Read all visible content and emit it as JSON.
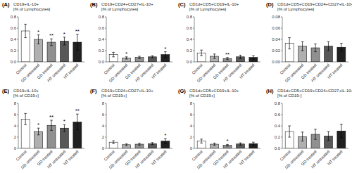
{
  "chart_data": [
    {
      "type": "bar",
      "label": "(A)",
      "title": "CD19+IL-10+[% of Lymphocytes]",
      "categories": [
        "Control",
        "GD untreated",
        "GD treated",
        "HT untreated",
        "HT treated"
      ],
      "values": [
        0.55,
        0.4,
        0.35,
        0.37,
        0.35
      ],
      "errors": [
        0.12,
        0.08,
        0.06,
        0.07,
        0.14
      ],
      "colors": [
        "#ffffff",
        "#b0b0b0",
        "#909090",
        "#585858",
        "#202020"
      ],
      "ylim": [
        0,
        0.8
      ],
      "yticks": [
        {
          "value": 0.0,
          "label": "0.0"
        },
        0.2,
        0.4,
        0.6,
        0.8
      ],
      "annotations": [
        {
          "x": "GD untreated",
          "text": "*"
        },
        {
          "x": "GD treated",
          "text": "**"
        },
        {
          "x": "HT untreated",
          "text": "*"
        },
        {
          "x": "HT treated",
          "text": "**"
        }
      ]
    },
    {
      "type": "bar",
      "label": "(B)",
      "title": "CD19+CD24+CD27+IL-10+[% of Lymphocytes]",
      "categories": [
        "Control",
        "GD untreated",
        "GD treated",
        "HT untreated",
        "HT treated"
      ],
      "values": [
        0.13,
        0.07,
        0.08,
        0.09,
        0.13
      ],
      "errors": [
        0.04,
        0.02,
        0.02,
        0.02,
        0.05
      ],
      "colors": [
        "#ffffff",
        "#b0b0b0",
        "#909090",
        "#585858",
        "#202020"
      ],
      "ylim": [
        0,
        0.8
      ],
      "yticks": [
        {
          "value": 0.0,
          "label": "0.0"
        },
        0.2,
        0.4,
        0.6,
        0.8
      ],
      "annotations": [
        {
          "x": "GD untreated",
          "text": "*"
        },
        {
          "x": "HT treated",
          "text": "*"
        }
      ]
    },
    {
      "type": "bar",
      "label": "(C)",
      "title": "CD1d+CD5+CD19+IL-10+[% of Lymphocytes]",
      "categories": [
        "Control",
        "GD untreated",
        "GD treated",
        "HT untreated",
        "HT treated"
      ],
      "values": [
        0.16,
        0.1,
        0.06,
        0.09,
        0.08
      ],
      "errors": [
        0.05,
        0.04,
        0.02,
        0.03,
        0.03
      ],
      "colors": [
        "#ffffff",
        "#b0b0b0",
        "#909090",
        "#585858",
        "#202020"
      ],
      "ylim": [
        0,
        0.8
      ],
      "yticks": [
        {
          "value": 0.0,
          "label": "0.0"
        },
        0.2,
        0.4,
        0.6,
        0.8
      ],
      "annotations": [
        {
          "x": "GD treated",
          "text": "**"
        }
      ]
    },
    {
      "type": "bar",
      "label": "(D)",
      "title": "CD1d+CD5+CD19+CD24+CD27+IL-10+[% of Lymphocytes]",
      "categories": [
        "Control",
        "GD untreated",
        "GD treated",
        "HT untreated",
        "HT treated"
      ],
      "values": [
        0.033,
        0.028,
        0.025,
        0.028,
        0.026
      ],
      "errors": [
        0.01,
        0.008,
        0.007,
        0.008,
        0.007
      ],
      "colors": [
        "#ffffff",
        "#b0b0b0",
        "#909090",
        "#585858",
        "#202020"
      ],
      "ylim": [
        0,
        0.08
      ],
      "yticks": [
        {
          "value": 0.0,
          "label": "0.00"
        },
        {
          "value": 0.02,
          "label": "0.02"
        },
        {
          "value": 0.04,
          "label": "0.04"
        },
        {
          "value": 0.06,
          "label": "0.06"
        },
        {
          "value": 0.08,
          "label": "0.08"
        }
      ]
    },
    {
      "type": "bar",
      "label": "(E)",
      "title": "CD19+IL-10+[% of CD19+]",
      "categories": [
        "Control",
        "GD untreated",
        "GD treated",
        "HT untreated",
        "HT treated"
      ],
      "values": [
        5.2,
        3.0,
        4.1,
        3.6,
        4.7
      ],
      "errors": [
        1.0,
        0.6,
        0.9,
        0.6,
        1.4
      ],
      "colors": [
        "#ffffff",
        "#b0b0b0",
        "#909090",
        "#585858",
        "#202020"
      ],
      "ylim": [
        0,
        8
      ],
      "yticks": [
        0,
        2,
        4,
        6,
        8
      ],
      "annotations": [
        {
          "x": "GD untreated",
          "text": "*"
        },
        {
          "x": "GD treated",
          "text": "**"
        },
        {
          "x": "HT untreated",
          "text": "*"
        },
        {
          "x": "HT treated",
          "text": "**"
        }
      ]
    },
    {
      "type": "bar",
      "label": "(F)",
      "title": "CD19+CD24+CD27+IL-10+[% of CD19+]",
      "categories": [
        "Control",
        "GD untreated",
        "GD treated",
        "HT untreated",
        "HT treated"
      ],
      "values": [
        1.1,
        0.65,
        0.75,
        0.85,
        1.3
      ],
      "errors": [
        0.25,
        0.15,
        0.18,
        0.18,
        0.45
      ],
      "colors": [
        "#ffffff",
        "#b0b0b0",
        "#909090",
        "#585858",
        "#202020"
      ],
      "ylim": [
        0,
        8
      ],
      "yticks": [
        0,
        2,
        4,
        6,
        8
      ],
      "annotations": [
        {
          "x": "HT treated",
          "text": "*"
        }
      ]
    },
    {
      "type": "bar",
      "label": "(G)",
      "title": "CD1d+CD5+CD19+IL-10+[% of CD19+]",
      "categories": [
        "Control",
        "GD untreated",
        "GD treated",
        "HT untreated",
        "HT treated"
      ],
      "values": [
        1.3,
        0.75,
        0.55,
        0.78,
        0.85
      ],
      "errors": [
        0.35,
        0.2,
        0.15,
        0.2,
        0.25
      ],
      "colors": [
        "#ffffff",
        "#b0b0b0",
        "#909090",
        "#585858",
        "#202020"
      ],
      "ylim": [
        0,
        8
      ],
      "yticks": [
        0,
        2,
        4,
        6,
        8
      ],
      "annotations": [
        {
          "x": "GD treated",
          "text": "*"
        }
      ]
    },
    {
      "type": "bar",
      "label": "(H)",
      "title": "CD1d+CD5+CD19+CD24+CD27+IL-10+[% of CD19-]",
      "categories": [
        "Control",
        "GD untreated",
        "GD treated",
        "HT untreated",
        "HT treated"
      ],
      "values": [
        0.3,
        0.21,
        0.25,
        0.22,
        0.31
      ],
      "errors": [
        0.1,
        0.08,
        0.09,
        0.08,
        0.12
      ],
      "colors": [
        "#ffffff",
        "#b0b0b0",
        "#909090",
        "#585858",
        "#202020"
      ],
      "ylim": [
        0,
        0.8
      ],
      "yticks": [
        {
          "value": 0.0,
          "label": "0.0"
        },
        0.2,
        0.4,
        0.6,
        0.8
      ]
    }
  ]
}
